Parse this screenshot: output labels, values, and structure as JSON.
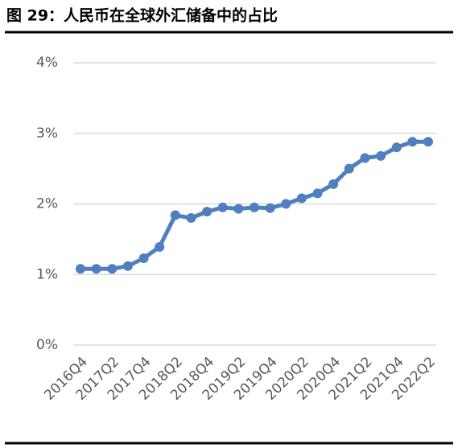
{
  "chart_data": {
    "type": "line",
    "title": "图 29：人民币在全球外汇储备中的占比",
    "categories": [
      "2016Q4",
      null,
      "2017Q2",
      null,
      "2017Q4",
      null,
      "2018Q2",
      null,
      "2018Q4",
      null,
      "2019Q2",
      null,
      "2019Q4",
      null,
      "2020Q2",
      null,
      "2020Q4",
      null,
      "2021Q2",
      null,
      "2021Q4",
      null,
      "2022Q2"
    ],
    "series": [
      {
        "color": "#4f7fc0",
        "values": [
          1.08,
          1.08,
          1.08,
          1.12,
          1.23,
          1.39,
          1.84,
          1.8,
          1.89,
          1.95,
          1.93,
          1.95,
          1.94,
          2.0,
          2.08,
          2.15,
          2.28,
          2.5,
          2.65,
          2.68,
          2.8,
          2.88,
          2.88
        ]
      }
    ],
    "ylim": [
      0,
      4
    ],
    "yticks": [
      {
        "value": 0,
        "label": "0%"
      },
      {
        "value": 1,
        "label": "1%"
      },
      {
        "value": 2,
        "label": "2%"
      },
      {
        "value": 3,
        "label": "3%"
      },
      {
        "value": 4,
        "label": "4%"
      }
    ],
    "grid": true
  }
}
